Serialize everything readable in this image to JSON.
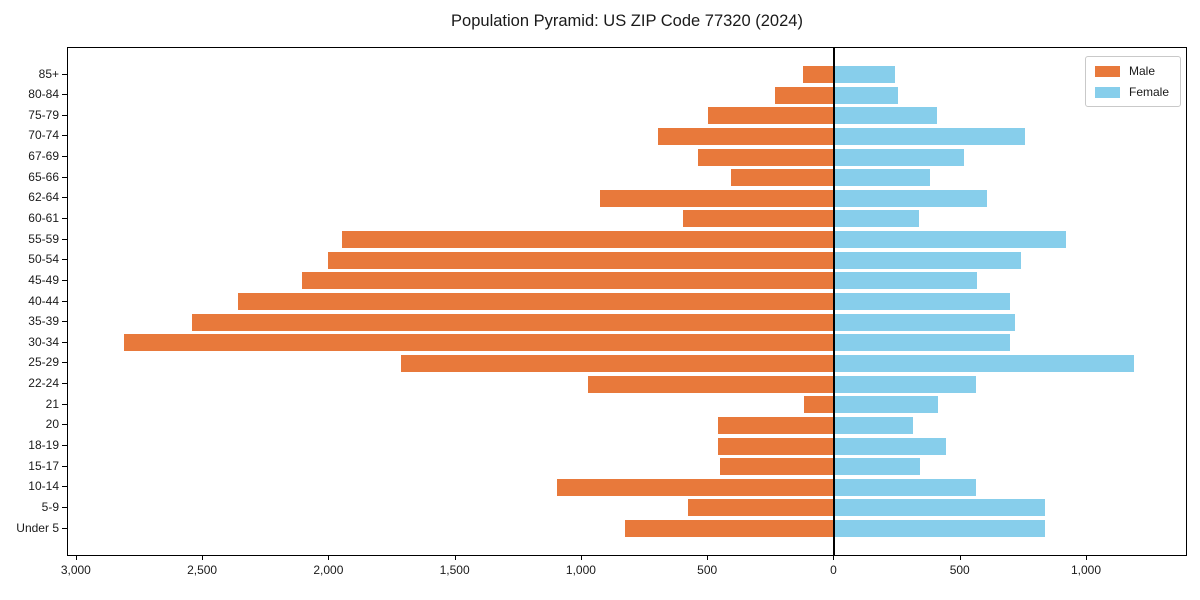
{
  "figure": {
    "title": "Population Pyramid: US ZIP Code 77320 (2024)",
    "background": "#ffffff",
    "axis_color": "#000000"
  },
  "legend": {
    "items": [
      {
        "label": "Male",
        "color": "#e8793b"
      },
      {
        "label": "Female",
        "color": "#87ceeb"
      }
    ]
  },
  "chart_data": {
    "type": "bar",
    "orientation": "horizontal-pyramid",
    "title": "Population Pyramid: US ZIP Code 77320 (2024)",
    "xlabel": "",
    "ylabel": "",
    "categories": [
      "85+",
      "80-84",
      "75-79",
      "70-74",
      "67-69",
      "65-66",
      "62-64",
      "60-61",
      "55-59",
      "50-54",
      "45-49",
      "40-44",
      "35-39",
      "30-34",
      "25-29",
      "22-24",
      "21",
      "20",
      "18-19",
      "15-17",
      "10-14",
      "5-9",
      "Under 5"
    ],
    "series": [
      {
        "name": "Male",
        "side": "left",
        "color": "#e8793b",
        "values": [
          125,
          235,
          500,
          700,
          540,
          410,
          930,
          600,
          1950,
          2005,
          2110,
          2360,
          2545,
          2815,
          1715,
          975,
          120,
          460,
          460,
          455,
          1100,
          580,
          830
        ]
      },
      {
        "name": "Female",
        "side": "right",
        "color": "#87ceeb",
        "values": [
          240,
          250,
          405,
          755,
          515,
          380,
          605,
          335,
          915,
          740,
          565,
          695,
          715,
          695,
          1185,
          560,
          410,
          310,
          440,
          340,
          560,
          835,
          835
        ]
      }
    ],
    "xlim": [
      -3035,
      1400
    ],
    "x_ticks": [
      {
        "value": -3000,
        "label": "3,000"
      },
      {
        "value": -2500,
        "label": "2,500"
      },
      {
        "value": -2000,
        "label": "2,000"
      },
      {
        "value": -1500,
        "label": "1,500"
      },
      {
        "value": -1000,
        "label": "1,000"
      },
      {
        "value": -500,
        "label": "500"
      },
      {
        "value": 0,
        "label": "0"
      },
      {
        "value": 500,
        "label": "500"
      },
      {
        "value": 1000,
        "label": "1,000"
      }
    ],
    "grid": false,
    "legend_position": "upper right"
  }
}
